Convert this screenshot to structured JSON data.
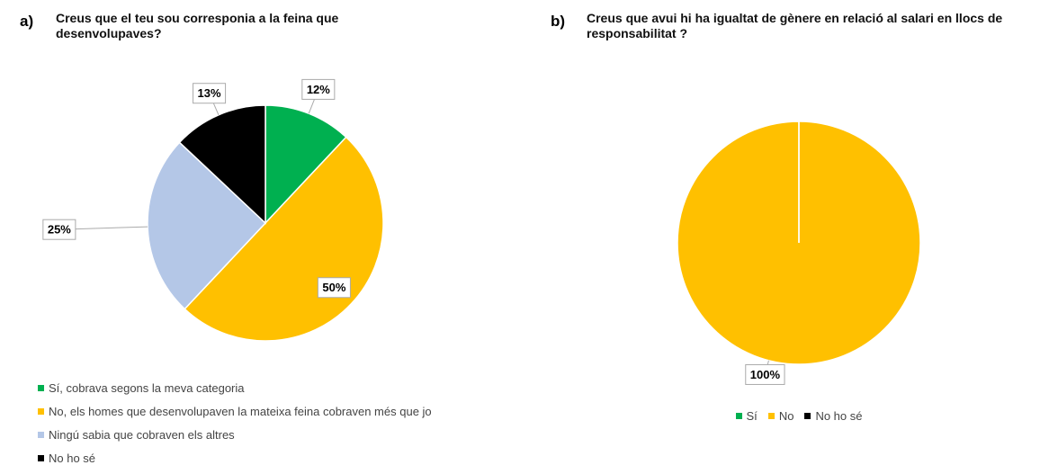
{
  "chart_data": [
    {
      "type": "pie",
      "panel_label": "a)",
      "title": "Creus que el teu sou corresponia a la feina que desenvolupaves?",
      "categories": [
        "Sí, cobrava segons la meva categoria",
        "No, els homes que desenvolupaven la mateixa feina cobraven més que jo",
        "Ningú sabia que cobraven els altres",
        "No ho sé"
      ],
      "values": [
        12,
        50,
        25,
        13
      ],
      "value_labels": [
        "12%",
        "50%",
        "25%",
        "13%"
      ],
      "colors": [
        "#00b050",
        "#ffc000",
        "#b4c7e7",
        "#000000"
      ],
      "legend": "bottom-left"
    },
    {
      "type": "pie",
      "panel_label": "b)",
      "title": "Creus que avui hi ha igualtat de gènere en relació al salari en llocs de responsabilitat ?",
      "categories": [
        "Sí",
        "No",
        "No ho sé"
      ],
      "values": [
        0,
        100,
        0
      ],
      "value_labels": [
        null,
        "100%",
        null
      ],
      "colors": [
        "#00b050",
        "#ffc000",
        "#000000"
      ],
      "legend": "bottom"
    }
  ]
}
